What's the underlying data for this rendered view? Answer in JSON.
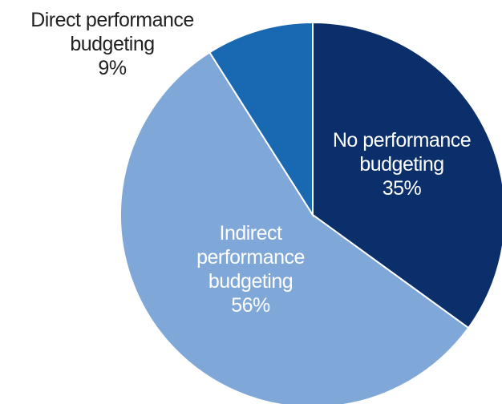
{
  "chart_data": {
    "type": "pie",
    "categories": [
      "No performance budgeting",
      "Indirect performance budgeting",
      "Direct performance budgeting"
    ],
    "values": [
      35,
      56,
      9
    ],
    "value_labels": [
      "35%",
      "56%",
      "9%"
    ],
    "colors": [
      "#0a2f6b",
      "#7fa7d8",
      "#1868b2"
    ]
  }
}
